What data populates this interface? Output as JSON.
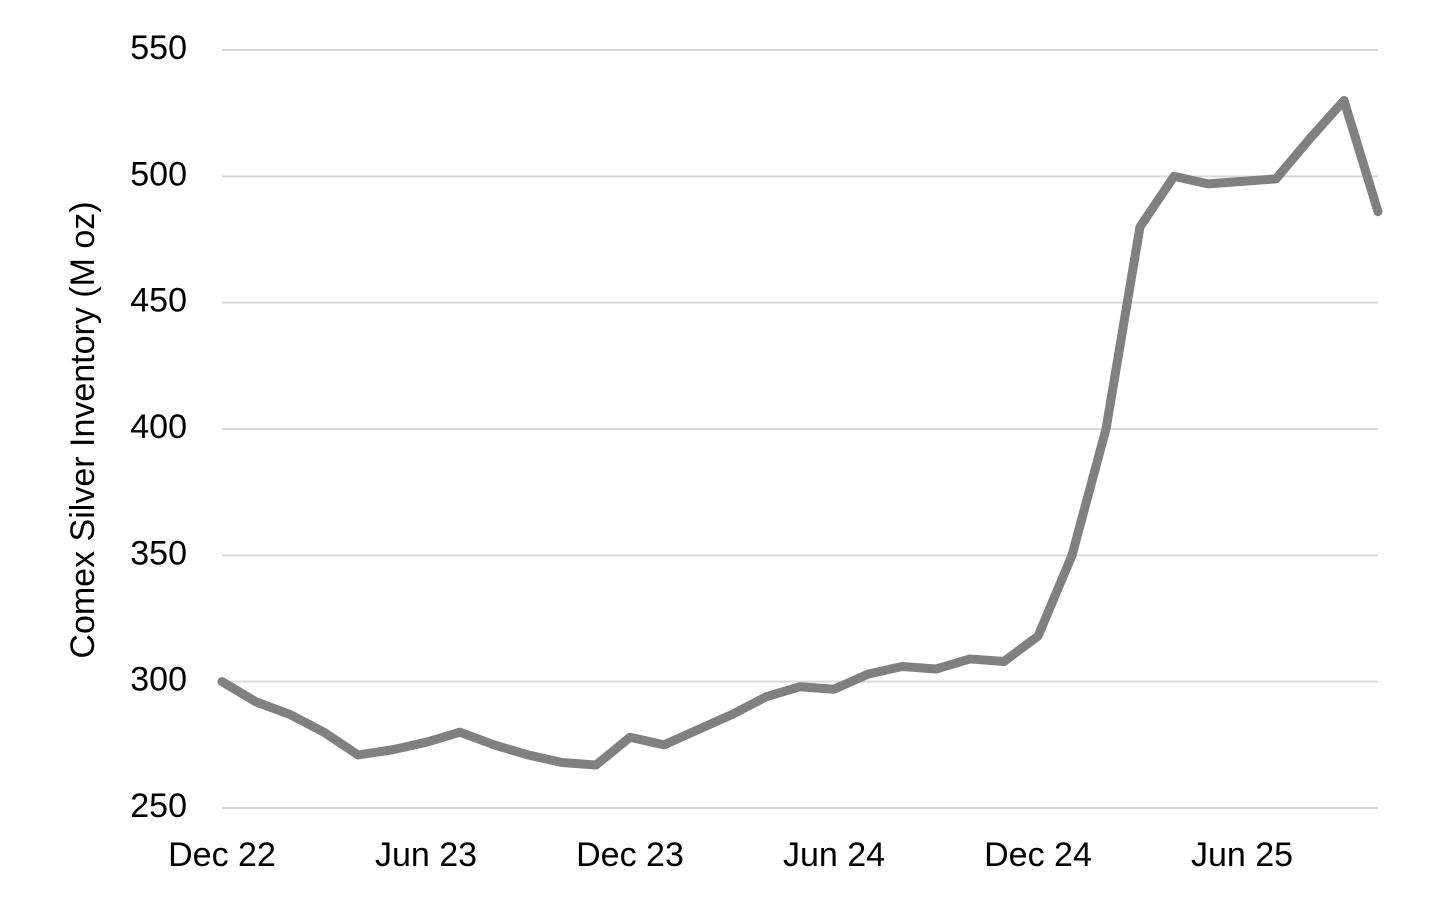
{
  "chart_data": {
    "type": "line",
    "y_label": "Comex Silver Inventory (M oz)",
    "x": [
      "2022-12",
      "2023-01",
      "2023-02",
      "2023-03",
      "2023-04",
      "2023-05",
      "2023-06",
      "2023-07",
      "2023-08",
      "2023-09",
      "2023-10",
      "2023-11",
      "2023-12",
      "2024-01",
      "2024-02",
      "2024-03",
      "2024-04",
      "2024-05",
      "2024-06",
      "2024-07",
      "2024-08",
      "2024-09",
      "2024-10",
      "2024-11",
      "2024-12",
      "2025-01",
      "2025-02",
      "2025-03",
      "2025-04",
      "2025-05",
      "2025-06",
      "2025-07",
      "2025-08",
      "2025-09",
      "2025-10"
    ],
    "series": [
      {
        "name": "Comex Silver Inventory",
        "color": "#808080",
        "values": [
          300,
          292,
          287,
          280,
          271,
          273,
          276,
          280,
          275,
          271,
          268,
          267,
          278,
          275,
          281,
          287,
          294,
          298,
          297,
          303,
          306,
          305,
          309,
          308,
          318,
          350,
          400,
          480,
          500,
          497,
          498,
          499,
          515,
          530,
          486
        ]
      }
    ],
    "xlim": [
      "2022-12",
      "2025-10"
    ],
    "xticks": [
      {
        "value": "2022-12",
        "label": "Dec 22"
      },
      {
        "value": "2023-06",
        "label": "Jun 23"
      },
      {
        "value": "2023-12",
        "label": "Dec 23"
      },
      {
        "value": "2024-06",
        "label": "Jun 24"
      },
      {
        "value": "2024-12",
        "label": "Dec 24"
      },
      {
        "value": "2025-06",
        "label": "Jun 25"
      }
    ],
    "ylim": [
      250,
      550
    ],
    "yticks": [
      250,
      300,
      350,
      400,
      450,
      500,
      550
    ],
    "grid": true
  }
}
